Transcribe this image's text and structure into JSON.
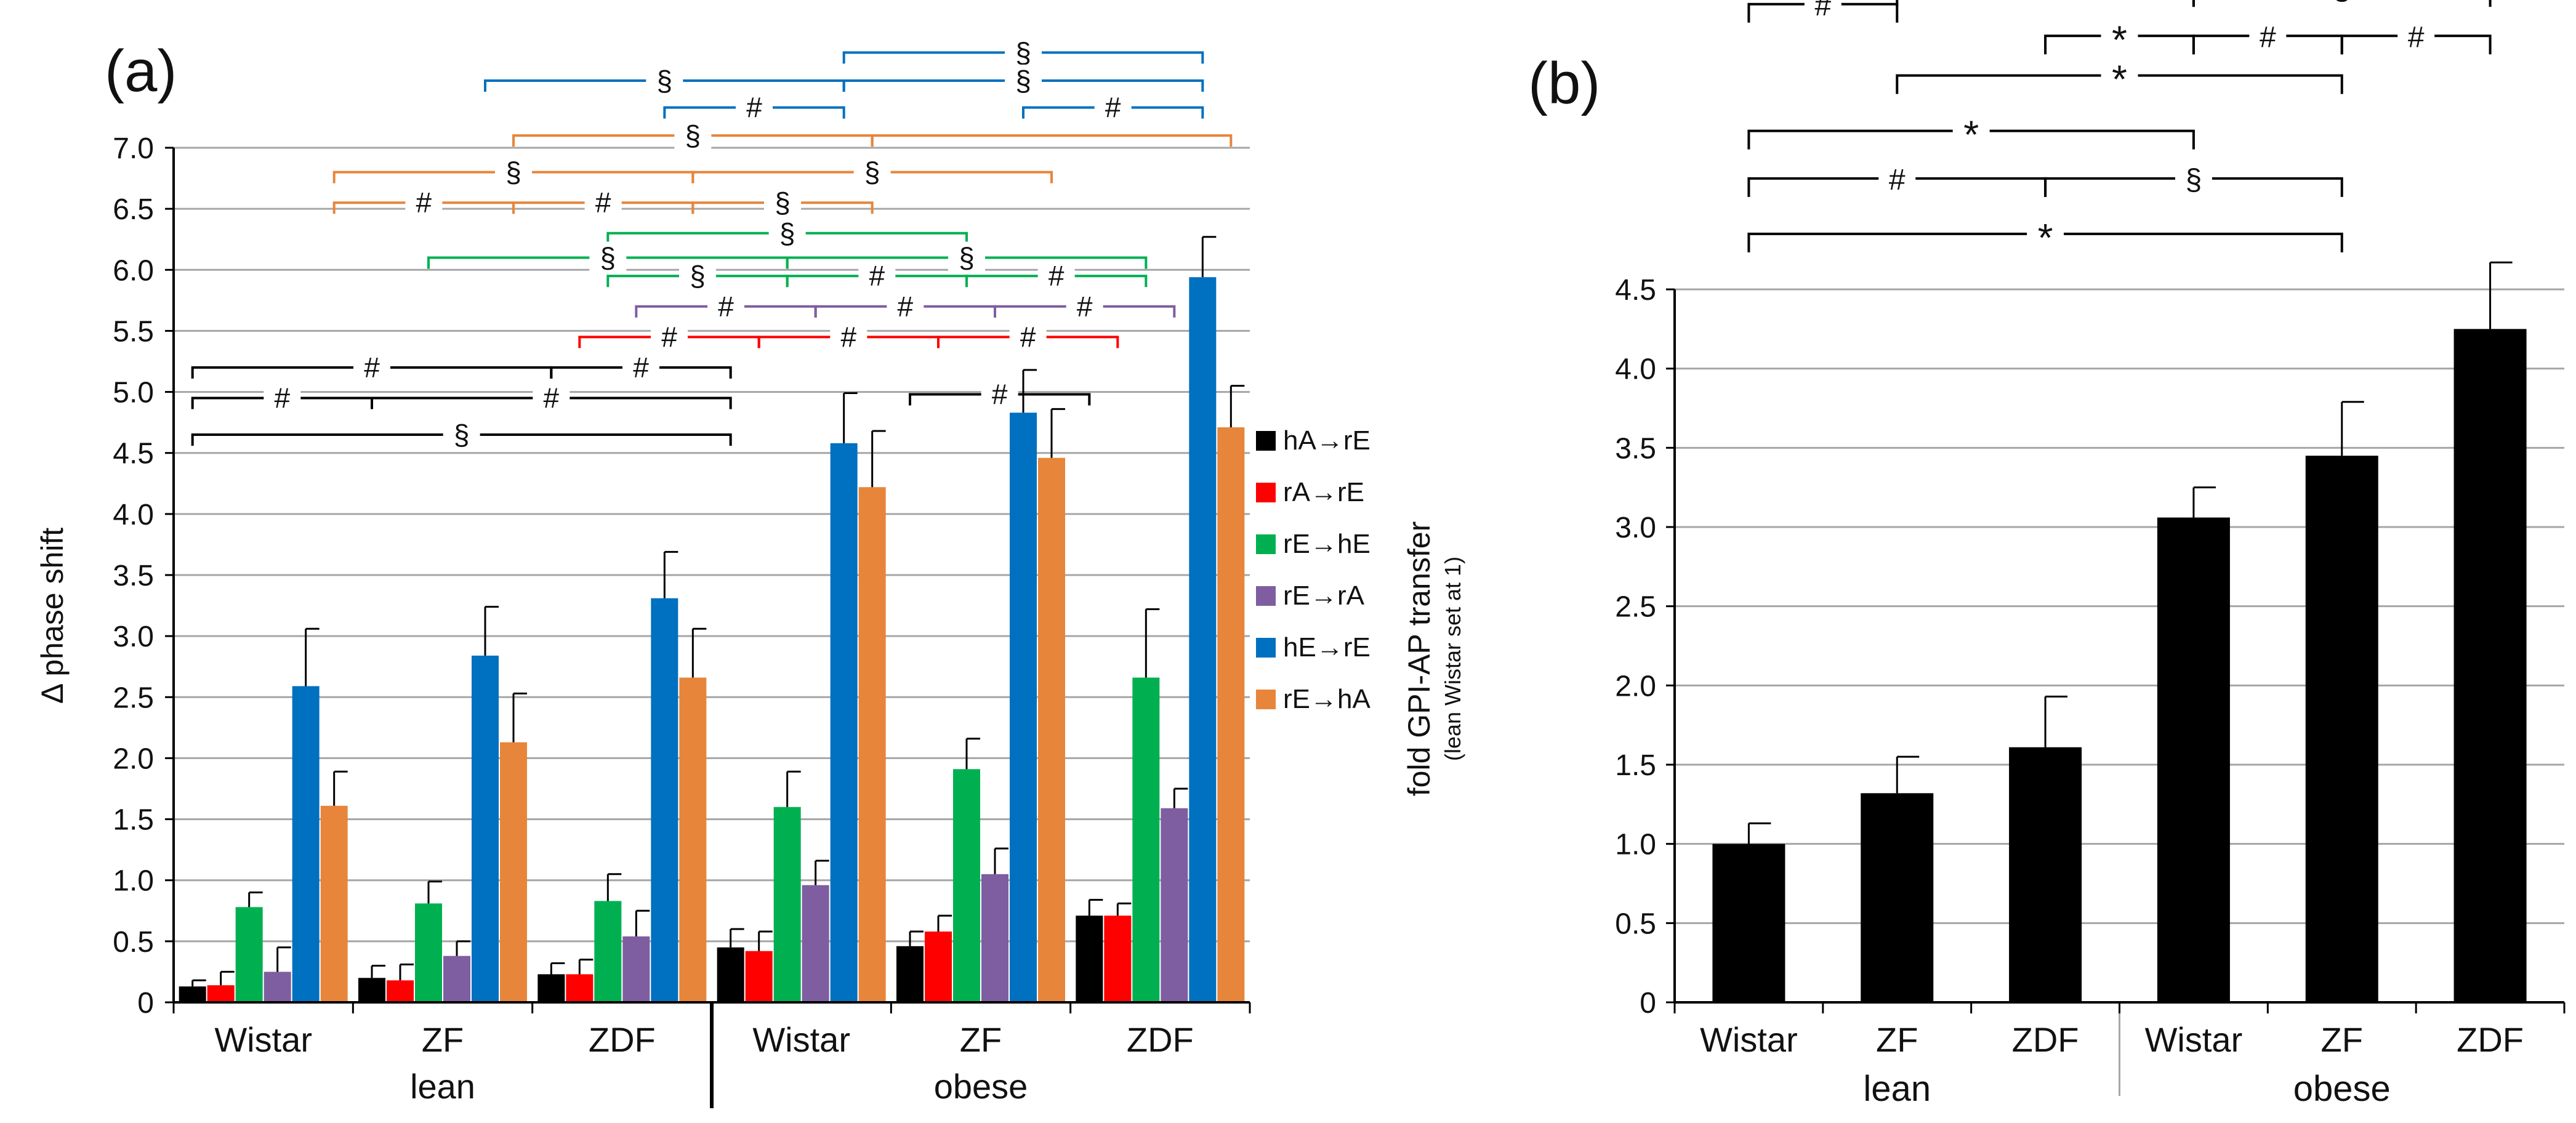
{
  "figure": {
    "panel_a_label": "(a)",
    "panel_b_label": "(b)"
  },
  "chart_data": [
    {
      "panel": "a",
      "type": "bar",
      "title": "",
      "ylabel": "Δ phase shift",
      "xlabel": "",
      "ylim": [
        0,
        7.0
      ],
      "yticks": [
        "0",
        "0.5",
        "1.0",
        "1.5",
        "2.0",
        "2.5",
        "3.0",
        "3.5",
        "4.0",
        "4.5",
        "5.0",
        "5.5",
        "6.0",
        "6.5",
        "7.0"
      ],
      "categories": [
        "Wistar",
        "ZF",
        "ZDF",
        "Wistar",
        "ZF",
        "ZDF"
      ],
      "groups": [
        {
          "label": "lean",
          "categories": [
            0,
            1,
            2
          ]
        },
        {
          "label": "obese",
          "categories": [
            3,
            4,
            5
          ]
        }
      ],
      "grid": true,
      "legend_position": "right",
      "series": [
        {
          "name": "hA→rE",
          "color": "#000000",
          "values": [
            0.13,
            0.2,
            0.23,
            0.45,
            0.46,
            0.71
          ],
          "errors": [
            0.05,
            0.1,
            0.09,
            0.15,
            0.12,
            0.13
          ]
        },
        {
          "name": "rA→rE",
          "color": "#ff0000",
          "values": [
            0.14,
            0.18,
            0.23,
            0.42,
            0.58,
            0.71
          ],
          "errors": [
            0.11,
            0.13,
            0.12,
            0.16,
            0.13,
            0.1
          ]
        },
        {
          "name": "rE→hE",
          "color": "#00b050",
          "values": [
            0.78,
            0.81,
            0.83,
            1.6,
            1.91,
            2.66
          ],
          "errors": [
            0.12,
            0.18,
            0.22,
            0.29,
            0.25,
            0.56
          ]
        },
        {
          "name": "rE→rA",
          "color": "#7e5ea0",
          "values": [
            0.25,
            0.38,
            0.54,
            0.96,
            1.05,
            1.59
          ],
          "errors": [
            0.2,
            0.12,
            0.21,
            0.2,
            0.21,
            0.16
          ]
        },
        {
          "name": "hE→rE",
          "color": "#0070c0",
          "values": [
            2.59,
            2.84,
            3.31,
            4.58,
            4.83,
            5.94
          ],
          "errors": [
            0.47,
            0.4,
            0.38,
            0.41,
            0.35,
            0.33
          ]
        },
        {
          "name": "rE→hA",
          "color": "#e7853a",
          "values": [
            1.61,
            2.13,
            2.66,
            4.22,
            4.46,
            4.71
          ],
          "errors": [
            0.28,
            0.4,
            0.4,
            0.46,
            0.4,
            0.34
          ]
        }
      ],
      "annotations": [
        {
          "text": "§",
          "color": "#0070c0",
          "from": [
            3,
            4
          ],
          "to": [
            5,
            4
          ],
          "y": 7.78
        },
        {
          "text": "§",
          "color": "#0070c0",
          "from": [
            1,
            4
          ],
          "to": [
            3,
            4
          ],
          "y": 7.55
        },
        {
          "text": "§",
          "color": "#0070c0",
          "from": [
            3,
            4
          ],
          "to": [
            5,
            4
          ],
          "y": 7.55
        },
        {
          "text": "#",
          "color": "#0070c0",
          "from": [
            2,
            4
          ],
          "to": [
            3,
            4
          ],
          "y": 7.33
        },
        {
          "text": "#",
          "color": "#0070c0",
          "from": [
            4,
            4
          ],
          "to": [
            5,
            4
          ],
          "y": 7.33
        },
        {
          "text": "§",
          "color": "#e7853a",
          "from": [
            1,
            5
          ],
          "to": [
            3,
            5
          ],
          "y": 7.1
        },
        {
          "text": "",
          "color": "#e7853a",
          "from": [
            3,
            5
          ],
          "to": [
            5,
            5
          ],
          "y": 7.1
        },
        {
          "text": "§",
          "color": "#e7853a",
          "from": [
            0,
            5
          ],
          "to": [
            2,
            5
          ],
          "y": 6.8
        },
        {
          "text": "§",
          "color": "#e7853a",
          "from": [
            2,
            5
          ],
          "to": [
            4,
            5
          ],
          "y": 6.8
        },
        {
          "text": "#",
          "color": "#e7853a",
          "from": [
            0,
            5
          ],
          "to": [
            1,
            5
          ],
          "y": 6.55
        },
        {
          "text": "#",
          "color": "#e7853a",
          "from": [
            1,
            5
          ],
          "to": [
            2,
            5
          ],
          "y": 6.55
        },
        {
          "text": "§",
          "color": "#e7853a",
          "from": [
            2,
            5
          ],
          "to": [
            3,
            5
          ],
          "y": 6.55
        },
        {
          "text": "§",
          "color": "#00b050",
          "from": [
            2,
            2
          ],
          "to": [
            4,
            2
          ],
          "y": 6.3
        },
        {
          "text": "§",
          "color": "#00b050",
          "from": [
            1,
            2
          ],
          "to": [
            3,
            2
          ],
          "y": 6.1
        },
        {
          "text": "§",
          "color": "#00b050",
          "from": [
            3,
            2
          ],
          "to": [
            5,
            2
          ],
          "y": 6.1
        },
        {
          "text": "§",
          "color": "#00b050",
          "from": [
            2,
            2
          ],
          "to": [
            3,
            2
          ],
          "y": 5.95
        },
        {
          "text": "#",
          "color": "#00b050",
          "from": [
            3,
            2
          ],
          "to": [
            4,
            2
          ],
          "y": 5.95
        },
        {
          "text": "#",
          "color": "#00b050",
          "from": [
            4,
            2
          ],
          "to": [
            5,
            2
          ],
          "y": 5.95
        },
        {
          "text": "#",
          "color": "#7e5ea0",
          "from": [
            2,
            3
          ],
          "to": [
            3,
            3
          ],
          "y": 5.7
        },
        {
          "text": "#",
          "color": "#7e5ea0",
          "from": [
            3,
            3
          ],
          "to": [
            4,
            3
          ],
          "y": 5.7
        },
        {
          "text": "#",
          "color": "#7e5ea0",
          "from": [
            4,
            3
          ],
          "to": [
            5,
            3
          ],
          "y": 5.7
        },
        {
          "text": "#",
          "color": "#ff0000",
          "from": [
            2,
            1
          ],
          "to": [
            3,
            1
          ],
          "y": 5.45
        },
        {
          "text": "#",
          "color": "#ff0000",
          "from": [
            3,
            1
          ],
          "to": [
            4,
            1
          ],
          "y": 5.45
        },
        {
          "text": "#",
          "color": "#ff0000",
          "from": [
            4,
            1
          ],
          "to": [
            5,
            1
          ],
          "y": 5.45
        },
        {
          "text": "#",
          "color": "#000000",
          "from": [
            0,
            0
          ],
          "to": [
            2,
            0
          ],
          "y": 5.2
        },
        {
          "text": "#",
          "color": "#000000",
          "from": [
            2,
            0
          ],
          "to": [
            3,
            0
          ],
          "y": 5.2
        },
        {
          "text": "#",
          "color": "#000000",
          "from": [
            4,
            0
          ],
          "to": [
            5,
            0
          ],
          "y": 4.98
        },
        {
          "text": "#",
          "color": "#000000",
          "from": [
            0,
            0
          ],
          "to": [
            1,
            0
          ],
          "y": 4.95
        },
        {
          "text": "#",
          "color": "#000000",
          "from": [
            1,
            0
          ],
          "to": [
            3,
            0
          ],
          "y": 4.95
        },
        {
          "text": "§",
          "color": "#000000",
          "from": [
            0,
            0
          ],
          "to": [
            3,
            0
          ],
          "y": 4.65
        }
      ]
    },
    {
      "panel": "b",
      "type": "bar",
      "title": "",
      "ylabel": "fold GPI-AP transfer",
      "ylabel_sub": "(lean Wistar set at 1)",
      "xlabel": "",
      "ylim": [
        0,
        4.5
      ],
      "yticks": [
        "0",
        "0.5",
        "1.0",
        "1.5",
        "2.0",
        "2.5",
        "3.0",
        "3.5",
        "4.0",
        "4.5"
      ],
      "categories": [
        "Wistar",
        "ZF",
        "ZDF",
        "Wistar",
        "ZF",
        "ZDF"
      ],
      "groups": [
        {
          "label": "lean",
          "categories": [
            0,
            1,
            2
          ]
        },
        {
          "label": "obese",
          "categories": [
            3,
            4,
            5
          ]
        }
      ],
      "grid": true,
      "series": [
        {
          "name": "",
          "color": "#000000",
          "values": [
            1.0,
            1.32,
            1.61,
            3.06,
            3.45,
            4.25
          ],
          "errors": [
            0.13,
            0.23,
            0.32,
            0.19,
            0.34,
            0.42
          ]
        }
      ],
      "annotations": [
        {
          "text": "*",
          "from": 0,
          "to": 5,
          "y": 7.35
        },
        {
          "text": "*",
          "from": 1,
          "to": 5,
          "y": 7.05
        },
        {
          "text": "*",
          "from": 2,
          "to": 5,
          "y": 6.7
        },
        {
          "text": "#",
          "from": 0,
          "to": 1,
          "y": 6.3
        },
        {
          "text": "*",
          "from": 1,
          "to": 3,
          "y": 6.4
        },
        {
          "text": "§",
          "from": 3,
          "to": 5,
          "y": 6.4
        },
        {
          "text": "*",
          "from": 2,
          "to": 3,
          "y": 6.1
        },
        {
          "text": "#",
          "from": 3,
          "to": 4,
          "y": 6.1
        },
        {
          "text": "#",
          "from": 4,
          "to": 5,
          "y": 6.1
        },
        {
          "text": "*",
          "from": 1,
          "to": 4,
          "y": 5.85
        },
        {
          "text": "*",
          "from": 0,
          "to": 3,
          "y": 5.5
        },
        {
          "text": "#",
          "from": 0,
          "to": 2,
          "y": 5.2
        },
        {
          "text": "§",
          "from": 2,
          "to": 4,
          "y": 5.2
        },
        {
          "text": "*",
          "from": 0,
          "to": 4,
          "y": 4.85
        }
      ]
    }
  ]
}
